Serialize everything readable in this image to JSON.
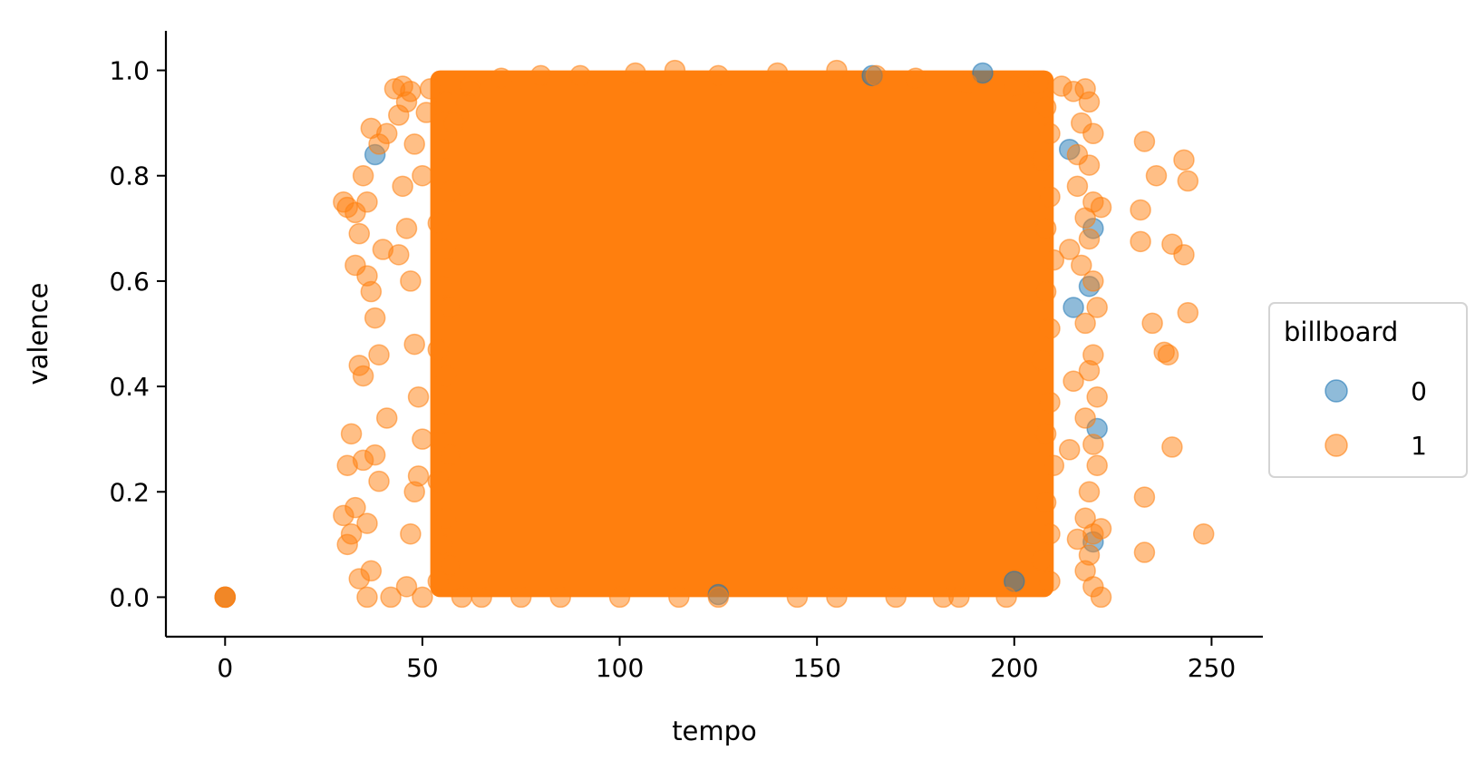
{
  "chart_data": {
    "type": "scatter",
    "title": "",
    "xlabel": "tempo",
    "ylabel": "valence",
    "xlim": [
      -15,
      263
    ],
    "ylim": [
      -0.075,
      1.075
    ],
    "x_ticks": [
      0,
      50,
      100,
      150,
      200,
      250
    ],
    "x_tick_labels": [
      "0",
      "50",
      "100",
      "150",
      "200",
      "250"
    ],
    "y_ticks": [
      0.0,
      0.2,
      0.4,
      0.6,
      0.8,
      1.0
    ],
    "y_tick_labels": [
      "0.0",
      "0.2",
      "0.4",
      "0.6",
      "0.8",
      "1.0"
    ],
    "grid": false,
    "legend": {
      "title": "billboard",
      "placement": "right, outside the axes",
      "entries": [
        {
          "label": "0",
          "color": "#1f77b4"
        },
        {
          "label": "1",
          "color": "#ff7f0e"
        }
      ]
    },
    "dense_region": {
      "x_range": [
        52,
        210
      ],
      "y_range": [
        0.0,
        1.0
      ],
      "note_series": "1"
    },
    "series": [
      {
        "name": "0",
        "color": "#1f77b4",
        "alpha": 0.5,
        "points": [
          [
            0,
            0.0
          ],
          [
            38,
            0.84
          ],
          [
            192,
            0.995
          ],
          [
            164,
            0.99
          ],
          [
            221,
            0.32
          ],
          [
            220,
            0.7
          ],
          [
            219,
            0.59
          ],
          [
            214,
            0.85
          ],
          [
            215,
            0.55
          ],
          [
            220,
            0.105
          ],
          [
            200,
            0.03
          ],
          [
            125,
            0.005
          ]
        ]
      },
      {
        "name": "1",
        "color": "#ff7f0e",
        "alpha": 0.5,
        "points": [
          [
            0,
            0.0
          ],
          [
            0,
            0.0
          ],
          [
            0,
            0.0
          ],
          [
            30,
            0.75
          ],
          [
            31,
            0.74
          ],
          [
            33,
            0.73
          ],
          [
            36,
            0.75
          ],
          [
            34,
            0.69
          ],
          [
            32,
            0.31
          ],
          [
            31,
            0.25
          ],
          [
            30,
            0.155
          ],
          [
            33,
            0.63
          ],
          [
            35,
            0.8
          ],
          [
            36,
            0.61
          ],
          [
            37,
            0.58
          ],
          [
            38,
            0.53
          ],
          [
            39,
            0.46
          ],
          [
            34,
            0.44
          ],
          [
            35,
            0.42
          ],
          [
            33,
            0.17
          ],
          [
            32,
            0.12
          ],
          [
            31,
            0.1
          ],
          [
            34,
            0.035
          ],
          [
            36,
            0.0
          ],
          [
            37,
            0.89
          ],
          [
            39,
            0.86
          ],
          [
            41,
            0.88
          ],
          [
            40,
            0.66
          ],
          [
            41,
            0.34
          ],
          [
            39,
            0.22
          ],
          [
            38,
            0.27
          ],
          [
            42,
            0.0
          ],
          [
            36,
            0.14
          ],
          [
            37,
            0.05
          ],
          [
            35,
            0.26
          ],
          [
            43,
            0.965
          ],
          [
            45,
            0.97
          ],
          [
            44,
            0.915
          ],
          [
            46,
            0.94
          ],
          [
            47,
            0.96
          ],
          [
            48,
            0.86
          ],
          [
            45,
            0.78
          ],
          [
            46,
            0.7
          ],
          [
            44,
            0.65
          ],
          [
            47,
            0.6
          ],
          [
            48,
            0.48
          ],
          [
            49,
            0.38
          ],
          [
            50,
            0.3
          ],
          [
            49,
            0.23
          ],
          [
            48,
            0.2
          ],
          [
            47,
            0.12
          ],
          [
            46,
            0.02
          ],
          [
            50,
            0.0
          ],
          [
            52,
            0.965
          ],
          [
            51,
            0.92
          ],
          [
            50,
            0.8
          ],
          [
            212,
            0.97
          ],
          [
            215,
            0.96
          ],
          [
            218,
            0.965
          ],
          [
            219,
            0.94
          ],
          [
            217,
            0.9
          ],
          [
            220,
            0.88
          ],
          [
            216,
            0.84
          ],
          [
            219,
            0.82
          ],
          [
            220,
            0.75
          ],
          [
            222,
            0.74
          ],
          [
            218,
            0.72
          ],
          [
            219,
            0.68
          ],
          [
            217,
            0.63
          ],
          [
            220,
            0.6
          ],
          [
            221,
            0.55
          ],
          [
            218,
            0.52
          ],
          [
            220,
            0.46
          ],
          [
            219,
            0.43
          ],
          [
            221,
            0.38
          ],
          [
            218,
            0.34
          ],
          [
            220,
            0.29
          ],
          [
            221,
            0.25
          ],
          [
            219,
            0.2
          ],
          [
            218,
            0.15
          ],
          [
            220,
            0.12
          ],
          [
            222,
            0.13
          ],
          [
            219,
            0.08
          ],
          [
            218,
            0.05
          ],
          [
            220,
            0.02
          ],
          [
            222,
            0.0
          ],
          [
            216,
            0.11
          ],
          [
            214,
            0.28
          ],
          [
            215,
            0.41
          ],
          [
            214,
            0.66
          ],
          [
            216,
            0.78
          ],
          [
            233,
            0.865
          ],
          [
            232,
            0.735
          ],
          [
            232,
            0.675
          ],
          [
            236,
            0.8
          ],
          [
            243,
            0.83
          ],
          [
            244,
            0.79
          ],
          [
            240,
            0.67
          ],
          [
            243,
            0.65
          ],
          [
            244,
            0.54
          ],
          [
            235,
            0.52
          ],
          [
            238,
            0.465
          ],
          [
            239,
            0.46
          ],
          [
            240,
            0.285
          ],
          [
            233,
            0.19
          ],
          [
            233,
            0.085
          ],
          [
            248,
            0.12
          ],
          [
            60,
            0.0
          ],
          [
            65,
            0.0
          ],
          [
            75,
            0.0
          ],
          [
            85,
            0.0
          ],
          [
            100,
            0.0
          ],
          [
            115,
            0.0
          ],
          [
            125,
            0.0
          ],
          [
            145,
            0.0
          ],
          [
            155,
            0.0
          ],
          [
            170,
            0.0
          ],
          [
            182,
            0.0
          ],
          [
            186,
            0.0
          ],
          [
            198,
            0.0
          ],
          [
            62,
            0.97
          ],
          [
            70,
            0.985
          ],
          [
            80,
            0.99
          ],
          [
            90,
            0.99
          ],
          [
            104,
            0.995
          ],
          [
            114,
            1.0
          ],
          [
            125,
            0.99
          ],
          [
            140,
            0.995
          ],
          [
            155,
            1.0
          ],
          [
            165,
            0.99
          ],
          [
            175,
            0.985
          ],
          [
            188,
            0.975
          ],
          [
            200,
            0.97
          ],
          [
            206,
            0.975
          ],
          [
            56,
            0.94
          ],
          [
            58,
            0.9
          ],
          [
            55,
            0.85
          ],
          [
            57,
            0.77
          ],
          [
            54,
            0.71
          ],
          [
            56,
            0.66
          ],
          [
            55,
            0.59
          ],
          [
            57,
            0.55
          ],
          [
            54,
            0.47
          ],
          [
            56,
            0.42
          ],
          [
            55,
            0.33
          ],
          [
            57,
            0.27
          ],
          [
            54,
            0.22
          ],
          [
            56,
            0.15
          ],
          [
            55,
            0.1
          ],
          [
            57,
            0.06
          ],
          [
            54,
            0.03
          ],
          [
            208,
            0.93
          ],
          [
            209,
            0.88
          ],
          [
            207,
            0.83
          ],
          [
            209,
            0.76
          ],
          [
            208,
            0.7
          ],
          [
            210,
            0.64
          ],
          [
            208,
            0.58
          ],
          [
            209,
            0.51
          ],
          [
            207,
            0.45
          ],
          [
            209,
            0.37
          ],
          [
            208,
            0.31
          ],
          [
            210,
            0.25
          ],
          [
            208,
            0.18
          ],
          [
            209,
            0.12
          ],
          [
            207,
            0.07
          ],
          [
            209,
            0.03
          ]
        ]
      }
    ]
  }
}
